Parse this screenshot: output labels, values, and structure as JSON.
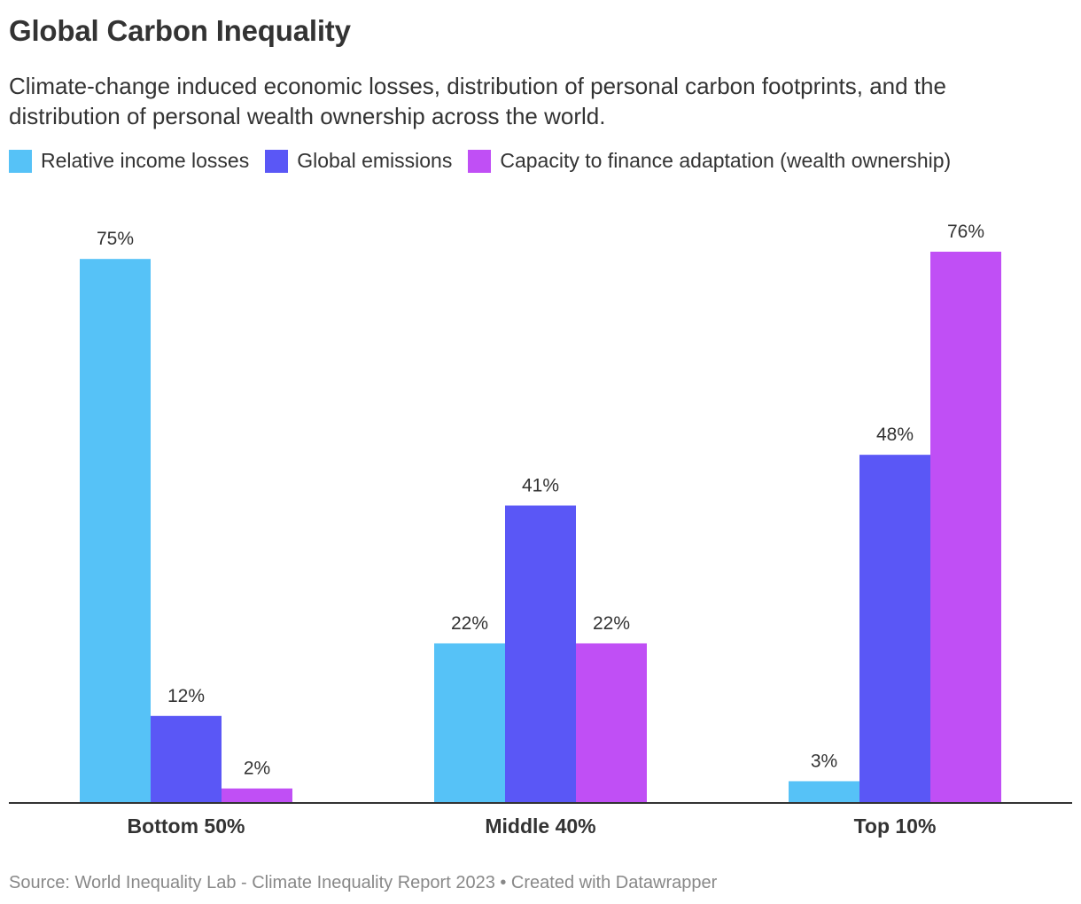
{
  "title": "Global Carbon Inequality",
  "subtitle": "Climate-change induced economic losses, distribution of personal carbon footprints, and the distribution of personal wealth ownership across the world.",
  "source": "Source: World Inequality Lab - Climate Inequality Report 2023 • Created with Datawrapper",
  "chart_data": {
    "type": "bar",
    "title": "Global Carbon Inequality",
    "categories": [
      "Bottom 50%",
      "Middle 40%",
      "Top 10%"
    ],
    "series": [
      {
        "name": "Relative income losses",
        "color": "#56c2f7",
        "values": [
          75,
          22,
          3
        ],
        "labels": [
          "75%",
          "22%",
          "3%"
        ]
      },
      {
        "name": "Global emissions",
        "color": "#5a57f6",
        "values": [
          12,
          41,
          48
        ],
        "labels": [
          "12%",
          "41%",
          "48%"
        ]
      },
      {
        "name": "Capacity to finance adaptation (wealth ownership)",
        "color": "#c04ff5",
        "values": [
          2,
          22,
          76
        ],
        "labels": [
          "2%",
          "22%",
          "76%"
        ]
      }
    ],
    "ylim": [
      0,
      76
    ],
    "xlabel": "",
    "ylabel": "",
    "grid": false,
    "legend_position": "top-left"
  }
}
